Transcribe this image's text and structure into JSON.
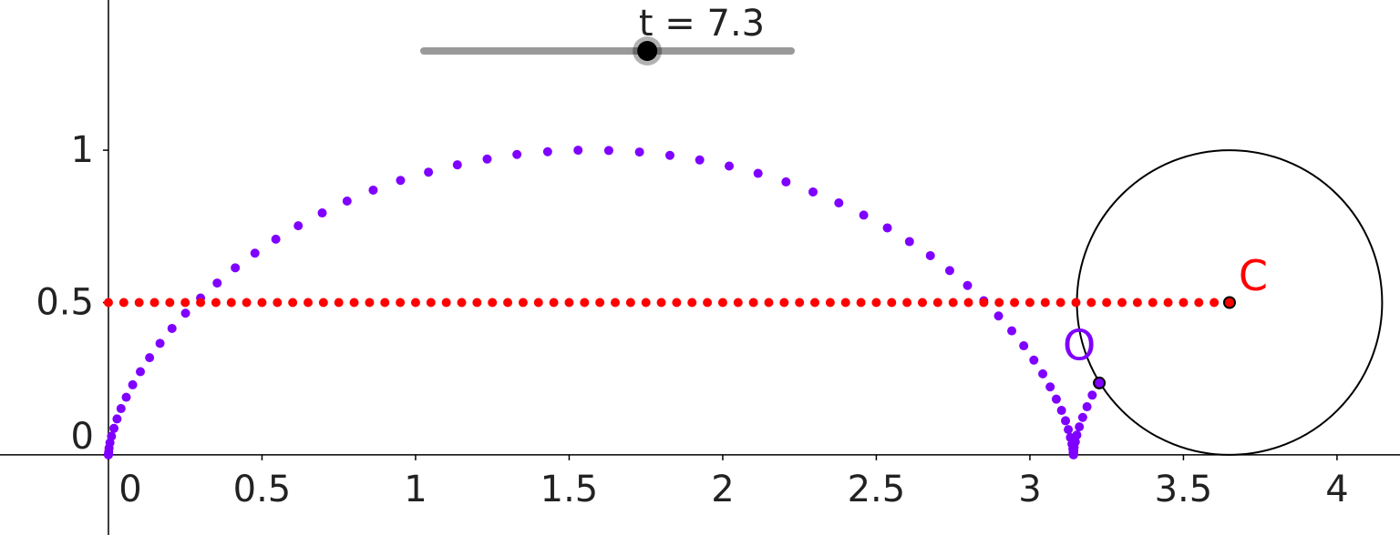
{
  "chart_data": {
    "type": "scatter",
    "xlim": [
      -0.353,
      4.205
    ],
    "ylim": [
      -0.263,
      1.493
    ],
    "xticks": [
      0,
      0.5,
      1,
      1.5,
      2,
      2.5,
      3,
      3.5,
      4
    ],
    "yticks": [
      0,
      0.5,
      1
    ],
    "series": [
      {
        "color": "#7f00ff",
        "x": [
          0,
          0,
          0.001,
          0.002,
          0.005,
          0.01,
          0.018,
          0.028,
          0.041,
          0.058,
          0.079,
          0.104,
          0.134,
          0.168,
          0.207,
          0.251,
          0.3,
          0.354,
          0.413,
          0.477,
          0.545,
          0.618,
          0.696,
          0.777,
          0.862,
          0.951,
          1.042,
          1.136,
          1.233,
          1.33,
          1.43,
          1.529,
          1.629,
          1.729,
          1.828,
          1.925,
          2.021,
          2.115,
          2.206,
          2.294,
          2.378,
          2.459,
          2.536,
          2.608,
          2.676,
          2.739,
          2.797,
          2.85,
          2.898,
          2.941,
          2.98,
          3.013,
          3.042,
          3.066,
          3.086,
          3.103,
          3.116,
          3.125,
          3.132,
          3.137,
          3.14,
          3.141,
          3.142,
          3.142,
          3.142,
          3.143,
          3.144,
          3.148,
          3.153,
          3.161,
          3.172,
          3.186,
          3.203
        ],
        "values": [
          0,
          0.002,
          0.01,
          0.022,
          0.04,
          0.061,
          0.087,
          0.118,
          0.152,
          0.189,
          0.23,
          0.273,
          0.319,
          0.366,
          0.415,
          0.465,
          0.515,
          0.564,
          0.614,
          0.662,
          0.708,
          0.752,
          0.794,
          0.833,
          0.869,
          0.901,
          0.928,
          0.952,
          0.971,
          0.986,
          0.995,
          1.0,
          0.999,
          0.994,
          0.983,
          0.968,
          0.948,
          0.924,
          0.896,
          0.863,
          0.827,
          0.787,
          0.745,
          0.7,
          0.654,
          0.605,
          0.556,
          0.506,
          0.456,
          0.407,
          0.358,
          0.311,
          0.266,
          0.223,
          0.183,
          0.146,
          0.112,
          0.083,
          0.057,
          0.036,
          0.02,
          0.008,
          0.002,
          0,
          0.003,
          0.012,
          0.025,
          0.043,
          0.065,
          0.092,
          0.123,
          0.158,
          0.196
        ]
      },
      {
        "color": "#ff0000",
        "x": [
          0,
          0.05,
          0.1,
          0.15,
          0.2,
          0.25,
          0.3,
          0.35,
          0.4,
          0.45,
          0.5,
          0.55,
          0.6,
          0.65,
          0.7,
          0.75,
          0.8,
          0.85,
          0.9,
          0.95,
          1,
          1.05,
          1.1,
          1.15,
          1.2,
          1.25,
          1.3,
          1.35,
          1.4,
          1.45,
          1.5,
          1.55,
          1.6,
          1.65,
          1.7,
          1.75,
          1.8,
          1.85,
          1.9,
          1.95,
          2,
          2.05,
          2.1,
          2.15,
          2.2,
          2.25,
          2.3,
          2.35,
          2.4,
          2.45,
          2.5,
          2.55,
          2.6,
          2.65,
          2.7,
          2.75,
          2.8,
          2.85,
          2.9,
          2.95,
          3,
          3.05,
          3.1,
          3.15,
          3.2,
          3.25,
          3.3,
          3.35,
          3.4,
          3.45,
          3.5,
          3.55,
          3.6
        ],
        "values": [
          0.5,
          0.5,
          0.5,
          0.5,
          0.5,
          0.5,
          0.5,
          0.5,
          0.5,
          0.5,
          0.5,
          0.5,
          0.5,
          0.5,
          0.5,
          0.5,
          0.5,
          0.5,
          0.5,
          0.5,
          0.5,
          0.5,
          0.5,
          0.5,
          0.5,
          0.5,
          0.5,
          0.5,
          0.5,
          0.5,
          0.5,
          0.5,
          0.5,
          0.5,
          0.5,
          0.5,
          0.5,
          0.5,
          0.5,
          0.5,
          0.5,
          0.5,
          0.5,
          0.5,
          0.5,
          0.5,
          0.5,
          0.5,
          0.5,
          0.5,
          0.5,
          0.5,
          0.5,
          0.5,
          0.5,
          0.5,
          0.5,
          0.5,
          0.5,
          0.5,
          0.5,
          0.5,
          0.5,
          0.5,
          0.5,
          0.5,
          0.5,
          0.5,
          0.5,
          0.5,
          0.5,
          0.5,
          0.5
        ]
      }
    ],
    "circle": {
      "x": 3.65,
      "y": 0.5,
      "radius": 0.5
    },
    "points": [
      {
        "label": "C",
        "x": 3.65,
        "y": 0.5,
        "color": "#ff0000"
      },
      {
        "label": "O",
        "x": 3.226,
        "y": 0.236,
        "color": "#7f00ff"
      }
    ],
    "slider": {
      "label": "t = 7.3",
      "value": 7.3,
      "min": 0,
      "max": 12
    }
  }
}
